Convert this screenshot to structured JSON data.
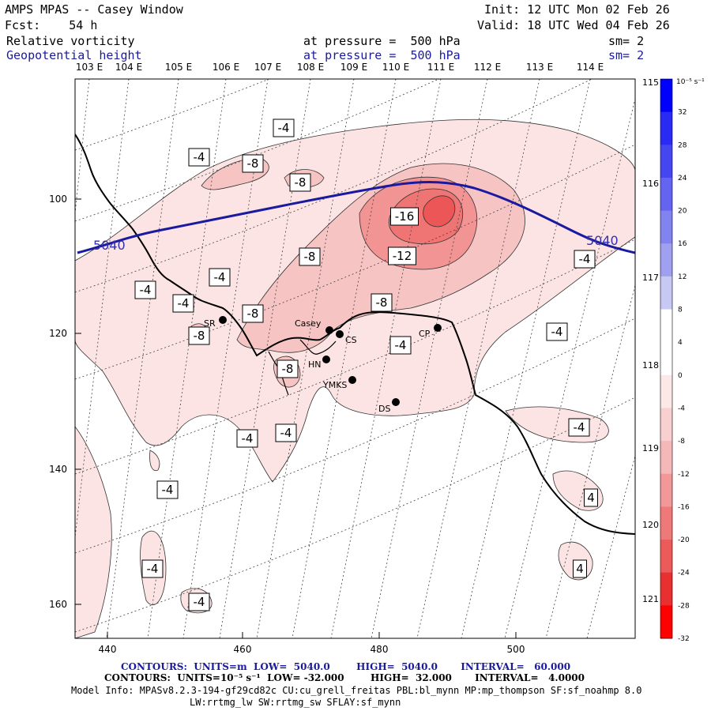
{
  "header": {
    "line1_left": "AMPS MPAS -- Casey Window",
    "line1_right": "Init: 12 UTC Mon 02 Feb 26",
    "line2_left": "Fcst:    54 h",
    "line2_right": "Valid: 18 UTC Wed 04 Feb 26",
    "field1_name": "Relative vorticity",
    "field1_level": "at pressure =  500 hPa",
    "field1_sm": "sm= 2",
    "field2_name": "Geopotential height",
    "field2_level": "at pressure =  500 hPa",
    "field2_sm": "sm= 2"
  },
  "map": {
    "lon_labels": [
      "103 E",
      "104 E",
      "105 E",
      "106 E",
      "107 E",
      "108 E",
      "109 E",
      "110 E",
      "111 E",
      "112 E",
      "113 E",
      "114 E"
    ],
    "lat_labels_right": [
      "115 E",
      "116 E",
      "117 E",
      "118 E",
      "119 E",
      "120 E",
      "121 E"
    ],
    "y_ticks": [
      "100",
      "120",
      "140",
      "160"
    ],
    "x_ticks": [
      "440",
      "460",
      "480",
      "500"
    ],
    "stations": [
      {
        "name": "SR"
      },
      {
        "name": "Casey"
      },
      {
        "name": "CS"
      },
      {
        "name": "HN"
      },
      {
        "name": "YMKS"
      },
      {
        "name": "DS"
      },
      {
        "name": "CP"
      }
    ],
    "height_labels": [
      "5040",
      "5040"
    ],
    "vort_labels": [
      "-4",
      "-4",
      "-8",
      "-8",
      "-16",
      "-12",
      "-8",
      "-4",
      "-4",
      "-4",
      "-4",
      "-8",
      "-8",
      "-8",
      "-4",
      "-8",
      "-4",
      "-4",
      "-4",
      "-4",
      "-4",
      "4",
      "4",
      "-4",
      "-4"
    ]
  },
  "colorbar": {
    "unit": "10⁻⁵ s⁻¹",
    "labels": [
      "32",
      "28",
      "24",
      "20",
      "16",
      "12",
      "8",
      "4",
      "0",
      "-4",
      "-8",
      "-12",
      "-16",
      "-20",
      "-24",
      "-28",
      "-32"
    ],
    "colors": [
      "#0000ff",
      "#2a2af5",
      "#4646f0",
      "#6464f0",
      "#8282f0",
      "#a0a0f0",
      "#c8c8f5",
      "#ffffff",
      "#ffffff",
      "#fde8e8",
      "#f9d0d0",
      "#f5b8b8",
      "#f29898",
      "#ef7878",
      "#ec5a5a",
      "#e83030",
      "#ff0000"
    ]
  },
  "footer": {
    "line1": "CONTOURS:  UNITS=m  LOW=  5040.0        HIGH=  5040.0       INTERVAL=   60.000",
    "line2": "CONTOURS:  UNITS=10⁻⁵ s⁻¹  LOW= -32.000        HIGH=  32.000       INTERVAL=   4.0000",
    "line3": "Model Info: MPASv8.2.3-194-gf29cd82c CU:cu_grell_freitas PBL:bl_mynn MP:mp_thompson SF:sf_noahmp 8.0",
    "line4": "LW:rrtmg_lw SW:rrtmg_sw SFLAY:sf_mynn"
  }
}
